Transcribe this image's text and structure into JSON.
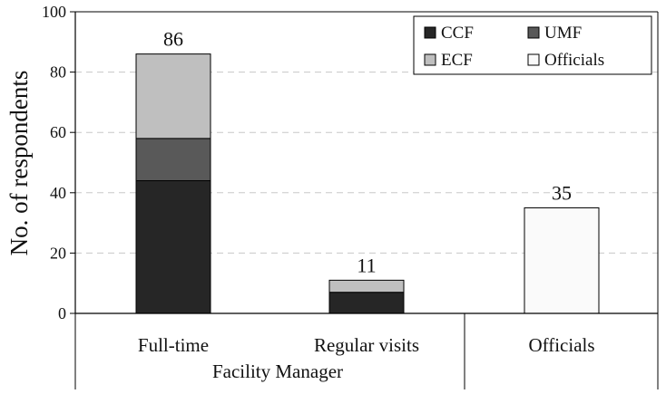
{
  "chart_data": {
    "type": "bar",
    "stacked": true,
    "categories": [
      "Full-time",
      "Regular visits",
      "Officials"
    ],
    "group_label": "Facility Manager",
    "group_members": [
      "Full-time",
      "Regular visits"
    ],
    "ylabel": "No. of respondents",
    "xlabel": "",
    "title": "",
    "ylim": [
      0,
      100
    ],
    "yticks": [
      0,
      20,
      40,
      60,
      80,
      100
    ],
    "grid": "horizontal-dashed",
    "legend_position": "top-right",
    "series": [
      {
        "name": "CCF",
        "color": "#262626",
        "values": [
          44,
          7,
          0
        ]
      },
      {
        "name": "UMF",
        "color": "#595959",
        "values": [
          14,
          0,
          0
        ]
      },
      {
        "name": "ECF",
        "color": "#bfbfbf",
        "values": [
          28,
          4,
          0
        ]
      },
      {
        "name": "Officials",
        "color": "#fafafa",
        "values": [
          0,
          0,
          35
        ]
      }
    ],
    "totals": [
      86,
      11,
      35
    ],
    "total_labels": [
      "86",
      "11",
      "35"
    ]
  }
}
